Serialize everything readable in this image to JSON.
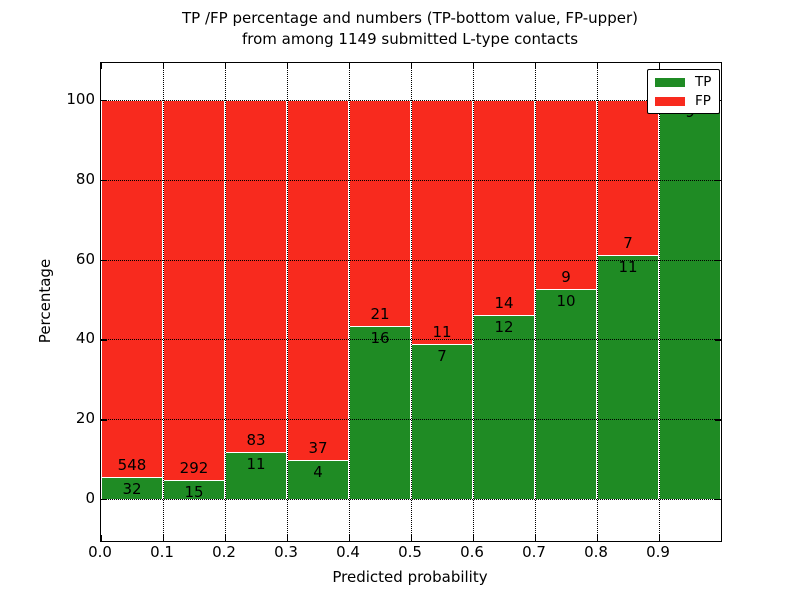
{
  "chart_data": {
    "type": "bar",
    "stacked": true,
    "normalized": "percent",
    "title_line1": "TP /FP percentage and numbers (TP-bottom value, FP-upper)",
    "title_line2": "from among 1149 submitted L-type contacts",
    "xlabel": "Predicted probability",
    "ylabel": "Percentage",
    "total_submitted_contacts": 1149,
    "x_bin_edges": [
      0.0,
      0.1,
      0.2,
      0.3,
      0.4,
      0.5,
      0.6,
      0.7,
      0.8,
      0.9,
      1.0
    ],
    "x_tick_labels": [
      "0.0",
      "0.1",
      "0.2",
      "0.3",
      "0.4",
      "0.5",
      "0.6",
      "0.7",
      "0.8",
      "0.9"
    ],
    "y_ticks": [
      0,
      20,
      40,
      60,
      80,
      100
    ],
    "y_tick_labels": [
      "0",
      "20",
      "40",
      "60",
      "80",
      "100"
    ],
    "ylim": [
      -10.5,
      110
    ],
    "xlim": [
      0.0,
      1.0
    ],
    "grid": {
      "visible": true,
      "style": "dotted",
      "color": "#000000"
    },
    "series": [
      {
        "name": "TP",
        "color": "#1f8b24",
        "counts": [
          32,
          15,
          11,
          4,
          16,
          7,
          12,
          10,
          11,
          9
        ]
      },
      {
        "name": "FP",
        "color": "#f82a1e",
        "counts": [
          548,
          292,
          83,
          37,
          21,
          11,
          14,
          9,
          7,
          0
        ]
      }
    ],
    "tp_percent_heights": [
      5.5,
      4.9,
      11.7,
      9.8,
      43.2,
      38.9,
      46.2,
      52.6,
      61.1,
      100.0
    ],
    "legend": {
      "position": "upper right",
      "entries": [
        {
          "label": "TP",
          "color": "#1f8b24"
        },
        {
          "label": "FP",
          "color": "#f82a1e"
        }
      ]
    },
    "bar_edge_color": "#ffffff"
  }
}
